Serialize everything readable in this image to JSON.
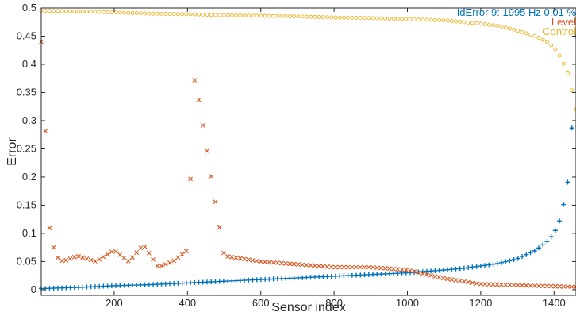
{
  "chart_data": {
    "type": "scatter",
    "title": "",
    "xlabel": "Sensor index",
    "ylabel": "Error",
    "xlim": [
      1,
      1460
    ],
    "ylim": [
      -0.01,
      0.5
    ],
    "xticks": [
      200,
      400,
      600,
      800,
      1000,
      1200,
      1400
    ],
    "xtick_labels": [
      "200",
      "400",
      "600",
      "800",
      "1000",
      "1200",
      "1400"
    ],
    "yticks": [
      0,
      0.05,
      0.1,
      0.15,
      0.2,
      0.25,
      0.3,
      0.35,
      0.4,
      0.45,
      0.5
    ],
    "ytick_labels": [
      "0",
      "0.05",
      "0.1",
      "0.15",
      "0.2",
      "0.25",
      "0.3",
      "0.35",
      "0.4",
      "0.45",
      "0.5"
    ],
    "grid": false,
    "legend_position": "top-right",
    "series": [
      {
        "name": "IdError  9: 1995 Hz 0.01 %",
        "color": "#0072BD",
        "marker": "plus",
        "description": "sorted ascending error",
        "x": [
          1,
          100,
          200,
          300,
          400,
          500,
          600,
          700,
          800,
          900,
          1000,
          1100,
          1150,
          1200,
          1250,
          1300,
          1350,
          1380,
          1400,
          1420,
          1440,
          1450,
          1460
        ],
        "y": [
          0.002,
          0.004,
          0.007,
          0.009,
          0.012,
          0.015,
          0.018,
          0.021,
          0.024,
          0.027,
          0.03,
          0.035,
          0.038,
          0.042,
          0.047,
          0.055,
          0.07,
          0.085,
          0.1,
          0.13,
          0.2,
          0.3,
          0.45
        ]
      },
      {
        "name": "Level",
        "color": "#D95319",
        "marker": "x",
        "x": [
          1,
          10,
          20,
          40,
          60,
          100,
          150,
          200,
          240,
          280,
          320,
          360,
          400,
          420,
          500,
          600,
          700,
          800,
          900,
          1000,
          1100,
          1200,
          1300,
          1400,
          1460
        ],
        "y": [
          0.44,
          0.33,
          0.12,
          0.06,
          0.05,
          0.06,
          0.05,
          0.07,
          0.05,
          0.08,
          0.04,
          0.05,
          0.07,
          0.38,
          0.06,
          0.05,
          0.045,
          0.04,
          0.04,
          0.035,
          0.02,
          0.01,
          0.008,
          0.006,
          0.005
        ]
      },
      {
        "name": "Control",
        "color": "#EDB120",
        "marker": "circle",
        "x": [
          1,
          100,
          200,
          300,
          400,
          500,
          600,
          700,
          800,
          900,
          1000,
          1100,
          1200,
          1250,
          1300,
          1350,
          1380,
          1400,
          1420,
          1440,
          1460
        ],
        "y": [
          0.495,
          0.494,
          0.492,
          0.49,
          0.489,
          0.487,
          0.486,
          0.485,
          0.483,
          0.482,
          0.48,
          0.478,
          0.472,
          0.468,
          0.46,
          0.45,
          0.44,
          0.43,
          0.41,
          0.38,
          0.32
        ]
      }
    ]
  }
}
